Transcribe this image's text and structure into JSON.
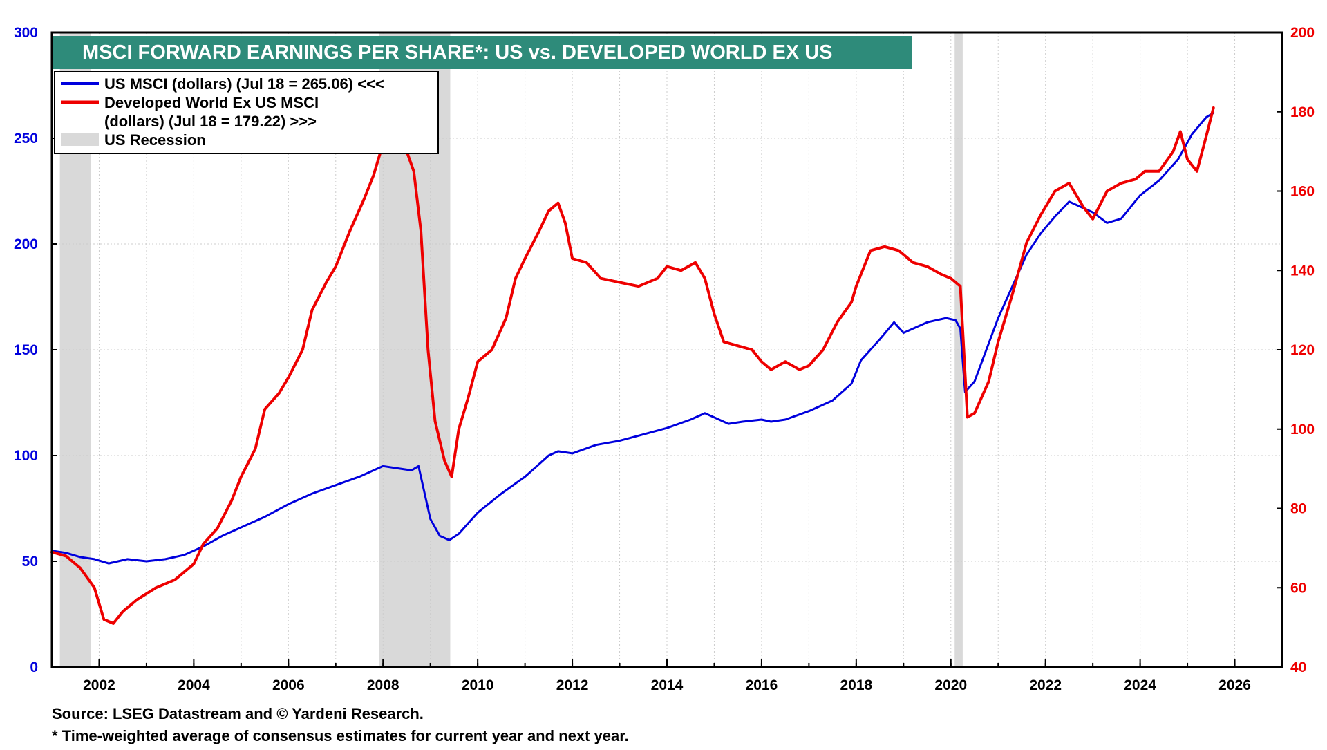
{
  "chart_data": {
    "type": "line",
    "title": "MSCI FORWARD EARNINGS PER SHARE*: US vs. DEVELOPED WORLD EX US",
    "xlabel": "",
    "x_ticks": [
      "2002",
      "2004",
      "2006",
      "2008",
      "2010",
      "2012",
      "2014",
      "2016",
      "2018",
      "2020",
      "2022",
      "2024",
      "2026"
    ],
    "xlim": [
      2001.0,
      2027.0
    ],
    "y_left": {
      "ticks": [
        "0",
        "50",
        "100",
        "150",
        "200",
        "250",
        "300"
      ],
      "ylim": [
        0,
        300
      ],
      "color": "#0000dd"
    },
    "y_right": {
      "ticks": [
        "40",
        "60",
        "80",
        "100",
        "120",
        "140",
        "160",
        "180",
        "200"
      ],
      "ylim": [
        40,
        200
      ],
      "color": "#ee0000"
    },
    "grid": true,
    "legend_position": "top-left",
    "legend": [
      {
        "label": "US MSCI (dollars) (Jul 18 = 265.06) <<<",
        "kind": "line",
        "color": "#0000dd"
      },
      {
        "label": "Developed World Ex US MSCI",
        "label2": "(dollars) (Jul 18 = 179.22) >>>",
        "kind": "line",
        "color": "#ee0000"
      },
      {
        "label": "US Recession",
        "kind": "box",
        "color": "#d9d9d9"
      }
    ],
    "recessions": [
      {
        "start": 2001.17,
        "end": 2001.83
      },
      {
        "start": 2007.92,
        "end": 2009.42
      },
      {
        "start": 2020.08,
        "end": 2020.25
      }
    ],
    "series": [
      {
        "name": "US MSCI (dollars) (Jul 18 = 265.06) <<<",
        "axis": "left",
        "color": "#0000dd",
        "x": [
          2001.0,
          2001.3,
          2001.6,
          2001.9,
          2002.2,
          2002.6,
          2003.0,
          2003.4,
          2003.8,
          2004.2,
          2004.6,
          2005.0,
          2005.5,
          2006.0,
          2006.5,
          2007.0,
          2007.5,
          2007.8,
          2008.0,
          2008.3,
          2008.6,
          2008.75,
          2008.85,
          2009.0,
          2009.2,
          2009.4,
          2009.6,
          2009.8,
          2010.0,
          2010.5,
          2011.0,
          2011.3,
          2011.5,
          2011.7,
          2012.0,
          2012.5,
          2013.0,
          2013.5,
          2014.0,
          2014.5,
          2014.8,
          2015.0,
          2015.3,
          2015.6,
          2016.0,
          2016.2,
          2016.5,
          2017.0,
          2017.5,
          2017.9,
          2018.1,
          2018.5,
          2018.8,
          2019.0,
          2019.5,
          2019.9,
          2020.1,
          2020.2,
          2020.3,
          2020.5,
          2020.75,
          2021.0,
          2021.3,
          2021.6,
          2021.9,
          2022.2,
          2022.5,
          2022.8,
          2023.0,
          2023.3,
          2023.6,
          2024.0,
          2024.4,
          2024.8,
          2025.1,
          2025.4,
          2025.55
        ],
        "values": [
          55,
          54,
          52,
          51,
          49,
          51,
          50,
          51,
          53,
          57,
          62,
          66,
          71,
          77,
          82,
          86,
          90,
          93,
          95,
          94,
          93,
          95,
          85,
          70,
          62,
          60,
          63,
          68,
          73,
          82,
          90,
          96,
          100,
          102,
          101,
          105,
          107,
          110,
          113,
          117,
          120,
          118,
          115,
          116,
          117,
          116,
          117,
          121,
          126,
          134,
          145,
          155,
          163,
          158,
          163,
          165,
          164,
          160,
          130,
          135,
          150,
          165,
          180,
          195,
          205,
          213,
          220,
          217,
          215,
          210,
          212,
          223,
          230,
          240,
          252,
          260,
          262
        ]
      },
      {
        "name": "Developed World Ex US MSCI (dollars) (Jul 18 = 179.22) >>>",
        "axis": "right",
        "color": "#ee0000",
        "x": [
          2001.0,
          2001.3,
          2001.6,
          2001.9,
          2002.1,
          2002.3,
          2002.5,
          2002.8,
          2003.2,
          2003.6,
          2004.0,
          2004.2,
          2004.5,
          2004.8,
          2005.0,
          2005.3,
          2005.5,
          2005.8,
          2006.0,
          2006.3,
          2006.5,
          2006.8,
          2007.0,
          2007.3,
          2007.6,
          2007.8,
          2008.0,
          2008.3,
          2008.5,
          2008.65,
          2008.8,
          2008.95,
          2009.1,
          2009.3,
          2009.45,
          2009.6,
          2009.8,
          2010.0,
          2010.3,
          2010.6,
          2010.8,
          2011.0,
          2011.3,
          2011.5,
          2011.7,
          2011.85,
          2012.0,
          2012.3,
          2012.6,
          2013.0,
          2013.4,
          2013.8,
          2014.0,
          2014.3,
          2014.6,
          2014.8,
          2015.0,
          2015.2,
          2015.5,
          2015.8,
          2016.0,
          2016.2,
          2016.5,
          2016.8,
          2017.0,
          2017.3,
          2017.6,
          2017.9,
          2018.0,
          2018.3,
          2018.6,
          2018.9,
          2019.2,
          2019.5,
          2019.8,
          2020.0,
          2020.2,
          2020.35,
          2020.5,
          2020.8,
          2021.0,
          2021.3,
          2021.6,
          2021.9,
          2022.2,
          2022.5,
          2022.8,
          2023.0,
          2023.3,
          2023.6,
          2023.9,
          2024.1,
          2024.4,
          2024.7,
          2024.85,
          2025.0,
          2025.2,
          2025.4,
          2025.55
        ],
        "values": [
          69,
          68,
          65,
          60,
          52,
          51,
          54,
          57,
          60,
          62,
          66,
          71,
          75,
          82,
          88,
          95,
          105,
          109,
          113,
          120,
          130,
          137,
          141,
          150,
          158,
          164,
          172,
          172,
          170,
          165,
          150,
          120,
          102,
          92,
          88,
          100,
          108,
          117,
          120,
          128,
          138,
          143,
          150,
          155,
          157,
          152,
          143,
          142,
          138,
          137,
          136,
          138,
          141,
          140,
          142,
          138,
          129,
          122,
          121,
          120,
          117,
          115,
          117,
          115,
          116,
          120,
          127,
          132,
          136,
          145,
          146,
          145,
          142,
          141,
          139,
          138,
          136,
          103,
          104,
          112,
          122,
          134,
          147,
          154,
          160,
          162,
          156,
          153,
          160,
          162,
          163,
          165,
          165,
          170,
          175,
          168,
          165,
          174,
          181
        ]
      }
    ],
    "footnotes": [
      "Source: LSEG Datastream and © Yardeni Research.",
      "* Time-weighted average of consensus estimates for current year and next year."
    ]
  }
}
